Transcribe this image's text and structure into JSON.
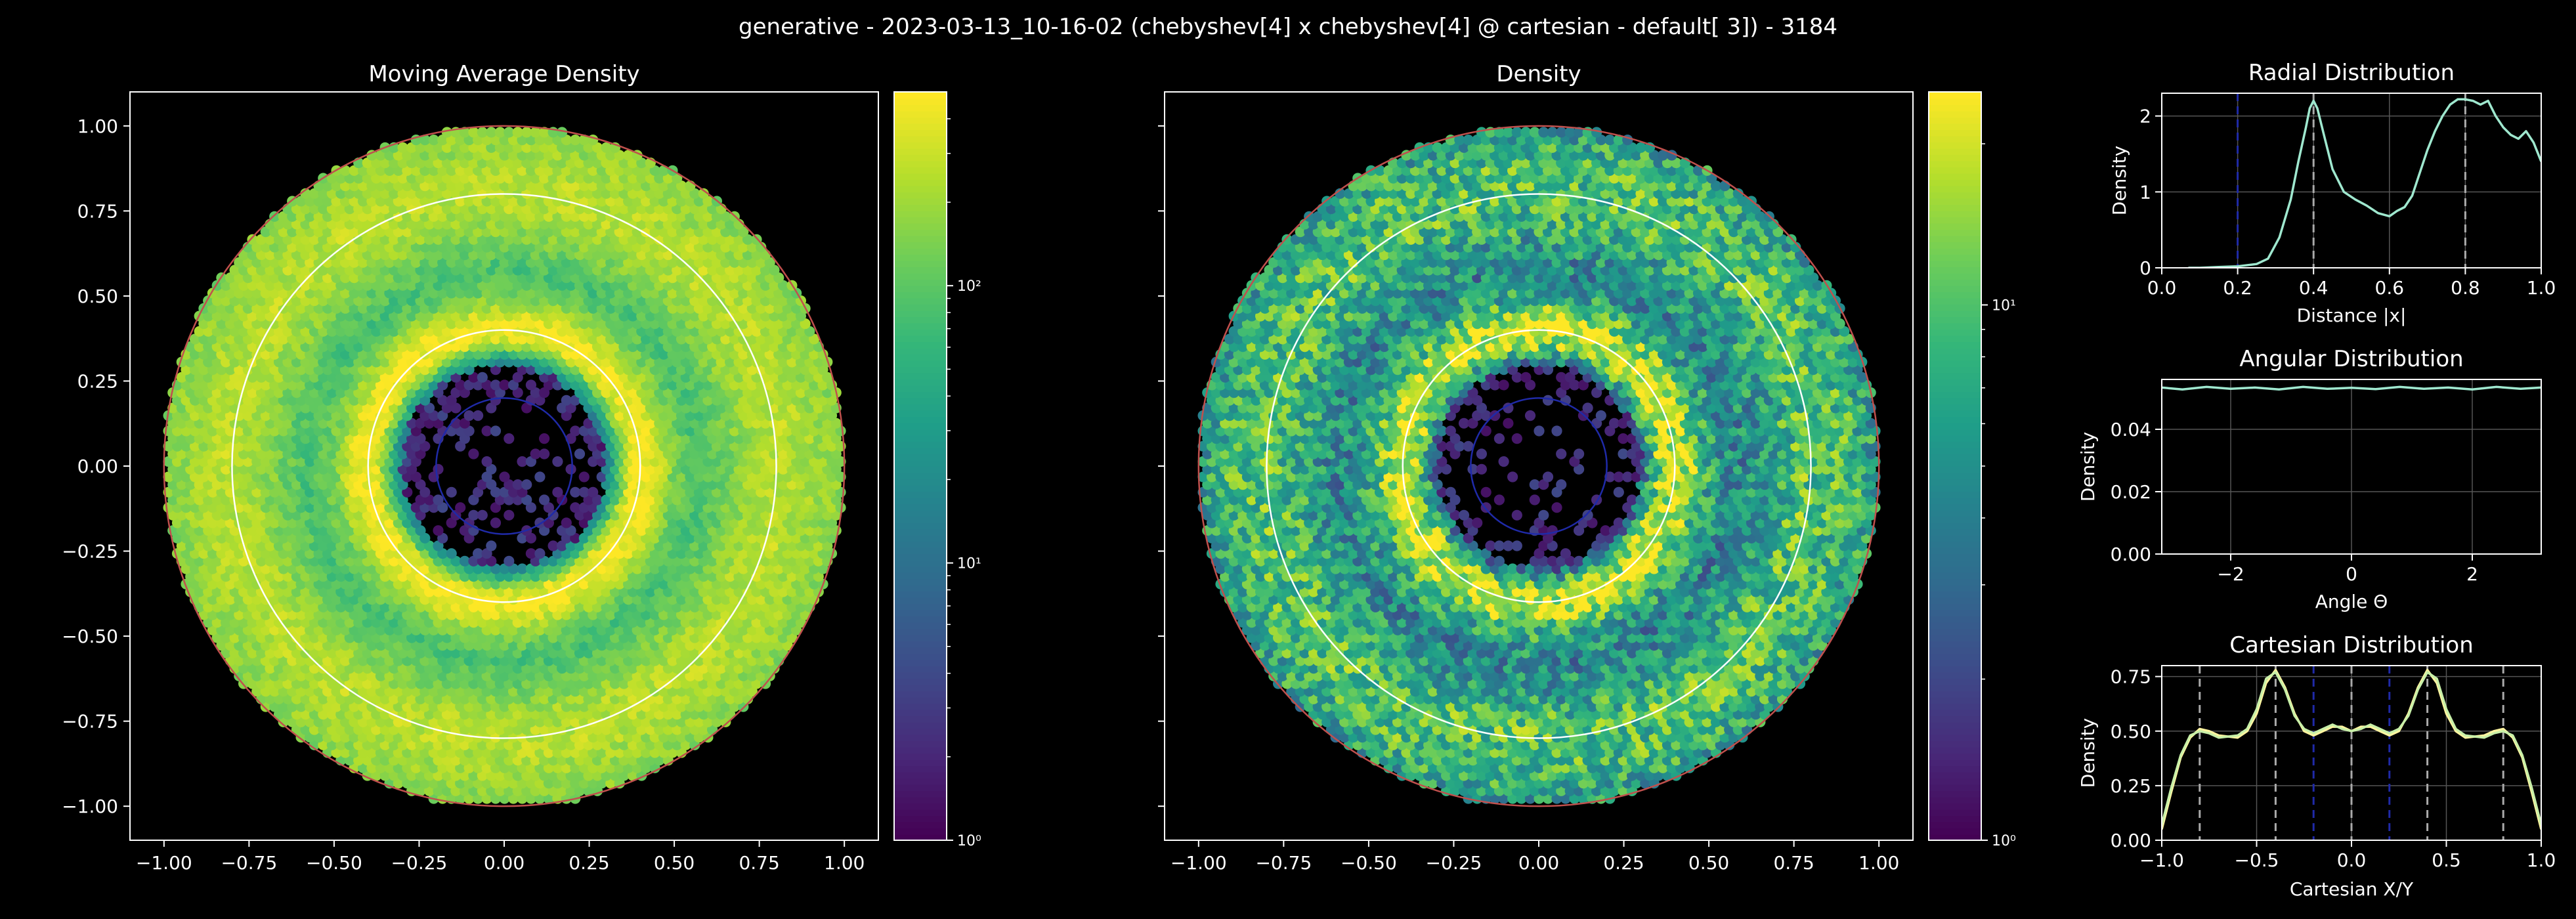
{
  "figure": {
    "suptitle": "generative - 2023-03-13_10-16-02 (chebyshev[4] x chebyshev[4] @ cartesian - default[   3]) - 3184",
    "background": "#000000",
    "foreground": "#ffffff"
  },
  "chart_data": [
    {
      "type": "heatmap",
      "title": "Moving Average Density",
      "xlim": [
        -1.1,
        1.1
      ],
      "ylim": [
        -1.1,
        1.1
      ],
      "x_ticks": [
        -1.0,
        -0.75,
        -0.5,
        -0.25,
        0.0,
        0.25,
        0.5,
        0.75,
        1.0
      ],
      "y_ticks": [
        -1.0,
        -0.75,
        -0.5,
        -0.25,
        0.0,
        0.25,
        0.5,
        0.75,
        1.0
      ],
      "x_tick_labels": [
        "−1.00",
        "−0.75",
        "−0.50",
        "−0.25",
        "0.00",
        "0.25",
        "0.50",
        "0.75",
        "1.00"
      ],
      "y_tick_labels": [
        "−1.00",
        "−0.75",
        "−0.50",
        "−0.25",
        "0.00",
        "0.25",
        "0.50",
        "0.75",
        "1.00"
      ],
      "colormap": "viridis",
      "color_scale": "log",
      "colorbar_range": [
        1,
        500
      ],
      "colorbar_ticks": [
        1,
        10,
        100
      ],
      "colorbar_labels": [
        "10⁰",
        "10¹",
        "10²"
      ],
      "radial_profile": [
        {
          "r": 0.0,
          "level": 0.05
        },
        {
          "r": 0.12,
          "level": 0.06
        },
        {
          "r": 0.22,
          "level": 0.08
        },
        {
          "r": 0.3,
          "level": 0.45
        },
        {
          "r": 0.37,
          "level": 0.95
        },
        {
          "r": 0.42,
          "level": 1.0
        },
        {
          "r": 0.5,
          "level": 0.8
        },
        {
          "r": 0.57,
          "level": 0.7
        },
        {
          "r": 0.65,
          "level": 0.78
        },
        {
          "r": 0.75,
          "level": 0.88
        },
        {
          "r": 0.82,
          "level": 0.9
        },
        {
          "r": 0.9,
          "level": 0.86
        },
        {
          "r": 0.98,
          "level": 0.83
        },
        {
          "r": 1.0,
          "level": 0.8
        }
      ],
      "reference_circles": [
        {
          "r": 0.2,
          "color": "#1f2aa8"
        },
        {
          "r": 0.4,
          "color": "#ffffff"
        },
        {
          "r": 0.8,
          "color": "#ffffff"
        },
        {
          "r": 1.0,
          "color": "#c0504d"
        }
      ],
      "grid": false
    },
    {
      "type": "heatmap",
      "title": "Density",
      "xlim": [
        -1.1,
        1.1
      ],
      "ylim": [
        -1.1,
        1.1
      ],
      "x_ticks": [
        -1.0,
        -0.75,
        -0.5,
        -0.25,
        0.0,
        0.25,
        0.5,
        0.75,
        1.0
      ],
      "x_tick_labels": [
        "−1.00",
        "−0.75",
        "−0.50",
        "−0.25",
        "0.00",
        "0.25",
        "0.50",
        "0.75",
        "1.00"
      ],
      "colormap": "viridis",
      "color_scale": "log",
      "colorbar_range": [
        1,
        25
      ],
      "colorbar_ticks": [
        1,
        10
      ],
      "colorbar_labels": [
        "10⁰",
        "10¹"
      ],
      "radial_profile": [
        {
          "r": 0.0,
          "level": 0.0
        },
        {
          "r": 0.22,
          "level": 0.0
        },
        {
          "r": 0.3,
          "level": 0.3
        },
        {
          "r": 0.36,
          "level": 0.85
        },
        {
          "r": 0.42,
          "level": 0.95
        },
        {
          "r": 0.5,
          "level": 0.6
        },
        {
          "r": 0.58,
          "level": 0.45
        },
        {
          "r": 0.66,
          "level": 0.55
        },
        {
          "r": 0.78,
          "level": 0.72
        },
        {
          "r": 0.9,
          "level": 0.68
        },
        {
          "r": 1.0,
          "level": 0.55
        }
      ],
      "reference_circles": [
        {
          "r": 0.2,
          "color": "#1f2aa8"
        },
        {
          "r": 0.4,
          "color": "#ffffff"
        },
        {
          "r": 0.8,
          "color": "#ffffff"
        },
        {
          "r": 1.0,
          "color": "#c0504d"
        }
      ],
      "grid": false
    },
    {
      "type": "line",
      "title": "Radial Distribution",
      "xlabel": "Distance |x|",
      "ylabel": "Density",
      "xlim": [
        0,
        1
      ],
      "ylim": [
        0,
        2.3
      ],
      "x_ticks": [
        0.0,
        0.2,
        0.4,
        0.6,
        0.8,
        1.0
      ],
      "x_tick_labels": [
        "0.0",
        "0.2",
        "0.4",
        "0.6",
        "0.8",
        "1.0"
      ],
      "y_ticks": [
        0,
        1,
        2
      ],
      "y_tick_labels": [
        "0",
        "1",
        "2"
      ],
      "grid": true,
      "line_color": "#9fe8cf",
      "vlines": [
        {
          "x": 0.2,
          "color": "#1f2aa8"
        },
        {
          "x": 0.4,
          "color": "#aaaaaa"
        },
        {
          "x": 0.8,
          "color": "#aaaaaa"
        }
      ],
      "x": [
        0.07,
        0.1,
        0.15,
        0.2,
        0.25,
        0.28,
        0.31,
        0.34,
        0.36,
        0.38,
        0.39,
        0.4,
        0.41,
        0.43,
        0.45,
        0.48,
        0.51,
        0.54,
        0.57,
        0.6,
        0.62,
        0.64,
        0.66,
        0.68,
        0.7,
        0.72,
        0.74,
        0.76,
        0.78,
        0.8,
        0.82,
        0.84,
        0.86,
        0.88,
        0.9,
        0.92,
        0.94,
        0.96,
        0.98,
        1.0
      ],
      "y": [
        0.0,
        0.0,
        0.01,
        0.02,
        0.05,
        0.12,
        0.4,
        0.9,
        1.4,
        1.85,
        2.1,
        2.2,
        2.1,
        1.7,
        1.3,
        1.0,
        0.9,
        0.82,
        0.72,
        0.68,
        0.75,
        0.8,
        0.95,
        1.25,
        1.55,
        1.8,
        2.0,
        2.15,
        2.22,
        2.22,
        2.2,
        2.15,
        2.2,
        2.0,
        1.85,
        1.75,
        1.7,
        1.8,
        1.65,
        1.4
      ]
    },
    {
      "type": "line",
      "title": "Angular Distribution",
      "xlabel": "Angle Θ",
      "ylabel": "Density",
      "xlim": [
        -3.1416,
        3.1416
      ],
      "ylim": [
        0,
        0.056
      ],
      "x_ticks": [
        -2,
        0,
        2
      ],
      "x_tick_labels": [
        "−2",
        "0",
        "2"
      ],
      "y_ticks": [
        0.0,
        0.02,
        0.04
      ],
      "y_tick_labels": [
        "0.00",
        "0.02",
        "0.04"
      ],
      "grid": true,
      "line_color": "#9fe8cf",
      "x": [
        -3.14,
        -2.8,
        -2.4,
        -2.0,
        -1.6,
        -1.2,
        -0.8,
        -0.4,
        0.0,
        0.4,
        0.8,
        1.2,
        1.6,
        2.0,
        2.4,
        2.8,
        3.14
      ],
      "y": [
        0.0534,
        0.0528,
        0.0536,
        0.053,
        0.0534,
        0.0528,
        0.0536,
        0.053,
        0.0533,
        0.0529,
        0.0536,
        0.053,
        0.0534,
        0.0528,
        0.0536,
        0.053,
        0.0534
      ]
    },
    {
      "type": "line",
      "title": "Cartesian Distribution",
      "xlabel": "Cartesian X/Y",
      "ylabel": "Density",
      "xlim": [
        -1,
        1
      ],
      "ylim": [
        0,
        0.8
      ],
      "x_ticks": [
        -1.0,
        -0.5,
        0.0,
        0.5,
        1.0
      ],
      "x_tick_labels": [
        "−1.0",
        "−0.5",
        "0.0",
        "0.5",
        "1.0"
      ],
      "y_ticks": [
        0.0,
        0.25,
        0.5,
        0.75
      ],
      "y_tick_labels": [
        "0.00",
        "0.25",
        "0.50",
        "0.75"
      ],
      "grid": true,
      "vlines": [
        {
          "x": -0.8,
          "color": "#aaaaaa"
        },
        {
          "x": -0.4,
          "color": "#aaaaaa"
        },
        {
          "x": -0.2,
          "color": "#1f2aa8"
        },
        {
          "x": 0.0,
          "color": "#aaaaaa"
        },
        {
          "x": 0.2,
          "color": "#1f2aa8"
        },
        {
          "x": 0.4,
          "color": "#aaaaaa"
        },
        {
          "x": 0.8,
          "color": "#aaaaaa"
        }
      ],
      "series": [
        {
          "color": "#fff5a0",
          "x": [
            -1.0,
            -0.95,
            -0.9,
            -0.85,
            -0.8,
            -0.75,
            -0.7,
            -0.6,
            -0.55,
            -0.5,
            -0.45,
            -0.4,
            -0.35,
            -0.3,
            -0.25,
            -0.2,
            -0.15,
            -0.1,
            -0.05,
            0.0,
            0.05,
            0.1,
            0.15,
            0.2,
            0.25,
            0.3,
            0.35,
            0.4,
            0.45,
            0.5,
            0.55,
            0.6,
            0.7,
            0.75,
            0.8,
            0.85,
            0.9,
            0.95,
            1.0
          ],
          "y": [
            0.05,
            0.22,
            0.38,
            0.47,
            0.51,
            0.5,
            0.48,
            0.47,
            0.5,
            0.58,
            0.72,
            0.78,
            0.7,
            0.58,
            0.5,
            0.48,
            0.5,
            0.52,
            0.52,
            0.5,
            0.52,
            0.52,
            0.5,
            0.48,
            0.5,
            0.58,
            0.7,
            0.78,
            0.72,
            0.58,
            0.5,
            0.47,
            0.48,
            0.5,
            0.51,
            0.47,
            0.38,
            0.22,
            0.05
          ]
        },
        {
          "color": "#c8f0a8",
          "x": [
            -1.0,
            -0.95,
            -0.9,
            -0.85,
            -0.8,
            -0.75,
            -0.7,
            -0.6,
            -0.55,
            -0.5,
            -0.45,
            -0.4,
            -0.35,
            -0.3,
            -0.25,
            -0.2,
            -0.15,
            -0.1,
            -0.05,
            0.0,
            0.05,
            0.1,
            0.15,
            0.2,
            0.25,
            0.3,
            0.35,
            0.4,
            0.45,
            0.5,
            0.55,
            0.6,
            0.7,
            0.75,
            0.8,
            0.85,
            0.9,
            0.95,
            1.0
          ],
          "y": [
            0.07,
            0.24,
            0.39,
            0.48,
            0.5,
            0.49,
            0.47,
            0.48,
            0.51,
            0.6,
            0.74,
            0.77,
            0.69,
            0.57,
            0.51,
            0.49,
            0.51,
            0.53,
            0.51,
            0.5,
            0.51,
            0.53,
            0.51,
            0.49,
            0.51,
            0.57,
            0.69,
            0.77,
            0.74,
            0.6,
            0.51,
            0.48,
            0.47,
            0.49,
            0.5,
            0.48,
            0.39,
            0.24,
            0.07
          ]
        }
      ]
    }
  ]
}
